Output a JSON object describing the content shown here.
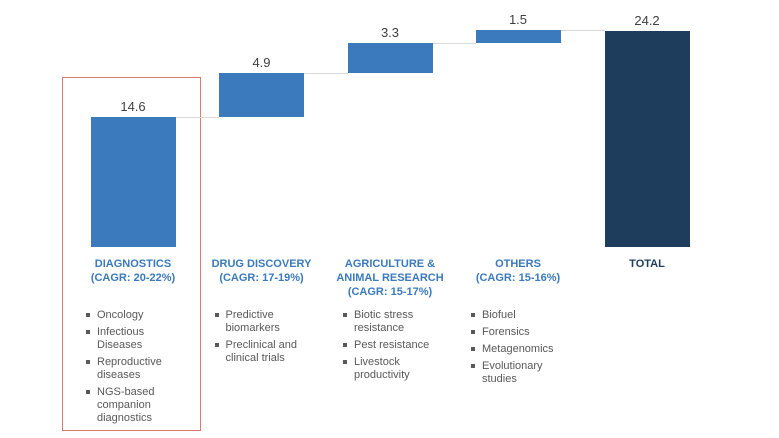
{
  "chart_data": {
    "type": "bar",
    "subtype": "waterfall",
    "title": "",
    "xlabel": "",
    "ylabel": "",
    "grid": false,
    "legend": "none",
    "ylim": [
      0,
      24.3
    ],
    "categories": [
      "DIAGNOSTICS",
      "DRUG DISCOVERY",
      "AGRICULTURE & ANIMAL RESEARCH",
      "OTHERS",
      "TOTAL"
    ],
    "values": [
      14.6,
      4.9,
      3.3,
      1.5,
      24.2
    ],
    "value_labels": [
      "14.6",
      "4.9",
      "3.3",
      "1.5",
      "24.2"
    ],
    "is_total": [
      false,
      false,
      false,
      false,
      true
    ]
  },
  "columns": [
    {
      "name": "DIAGNOSTICS",
      "cagr": "(CAGR: 20-22%)",
      "value": "14.6",
      "highlighted": true,
      "items": [
        "Oncology",
        "Infectious Diseases",
        "Reproductive diseases",
        "NGS-based companion diagnostics"
      ]
    },
    {
      "name": "DRUG DISCOVERY",
      "cagr": "(CAGR: 17-19%)",
      "value": "4.9",
      "highlighted": false,
      "items": [
        "Predictive biomarkers",
        "Preclinical and clinical trials"
      ]
    },
    {
      "name": "AGRICULTURE & ANIMAL RESEARCH",
      "cagr": "(CAGR: 15-17%)",
      "value": "3.3",
      "highlighted": false,
      "items": [
        "Biotic stress resistance",
        "Pest resistance",
        "Livestock productivity"
      ]
    },
    {
      "name": "OTHERS",
      "cagr": "(CAGR: 15-16%)",
      "value": "1.5",
      "highlighted": false,
      "items": [
        "Biofuel",
        "Forensics",
        "Metagenomics",
        "Evolutionary studies"
      ]
    },
    {
      "name": "TOTAL",
      "cagr": "",
      "value": "24.2",
      "highlighted": false,
      "total": true,
      "items": []
    }
  ],
  "colors": {
    "bar": "#3A7ABD",
    "total_bar": "#1E3D5C",
    "category_label": "#3A7ABD",
    "total_label": "#1E3D5C",
    "connector": "#D9D9D9",
    "value_text": "#404040",
    "bullet_text": "#595959",
    "highlight_border": "#DB7B70",
    "background": "#FFFFFF"
  }
}
